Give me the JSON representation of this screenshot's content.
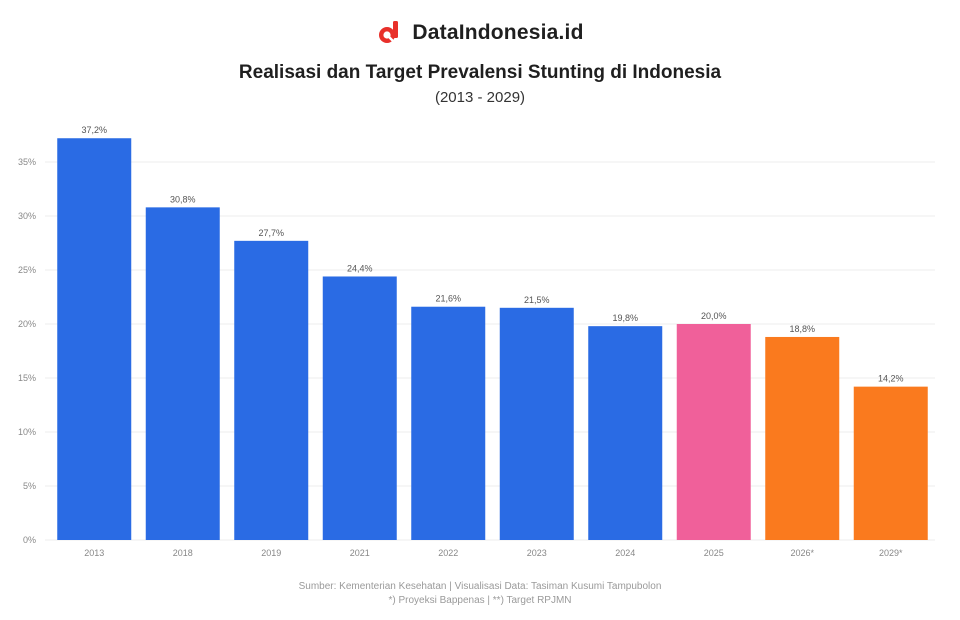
{
  "brand": {
    "name": "DataIndonesia.id",
    "logo_icon": "dataindonesia-logo-icon",
    "logo_color": "#e8302a"
  },
  "chart_data": {
    "type": "bar",
    "title": "Realisasi dan Target Prevalensi Stunting di Indonesia",
    "subtitle": "(2013 - 2029)",
    "categories": [
      "2013",
      "2018",
      "2019",
      "2021",
      "2022",
      "2023",
      "2024",
      "2025",
      "2026*",
      "2029*"
    ],
    "values": [
      37.2,
      30.8,
      27.7,
      24.4,
      21.6,
      21.5,
      19.8,
      20.0,
      18.8,
      14.2
    ],
    "value_labels": [
      "37,2%",
      "30,8%",
      "27,7%",
      "24,4%",
      "21,6%",
      "21,5%",
      "19,8%",
      "20,0%",
      "18,8%",
      "14,2%"
    ],
    "bar_colors": [
      "#2a6be4",
      "#2a6be4",
      "#2a6be4",
      "#2a6be4",
      "#2a6be4",
      "#2a6be4",
      "#2a6be4",
      "#f0609a",
      "#fa7a1e",
      "#fa7a1e"
    ],
    "y_ticks": [
      0,
      5,
      10,
      15,
      20,
      25,
      30,
      35
    ],
    "y_tick_labels": [
      "0%",
      "5%",
      "10%",
      "15%",
      "20%",
      "25%",
      "30%",
      "35%"
    ],
    "ylim": [
      0,
      35
    ],
    "xlabel": "",
    "ylabel": "",
    "grid": true,
    "legend": "none"
  },
  "source": {
    "line1": "Sumber: Kementerian Kesehatan | Visualisasi Data: Tasiman Kusumi Tampubolon",
    "line2": "*) Proyeksi Bappenas | **) Target RPJMN"
  }
}
